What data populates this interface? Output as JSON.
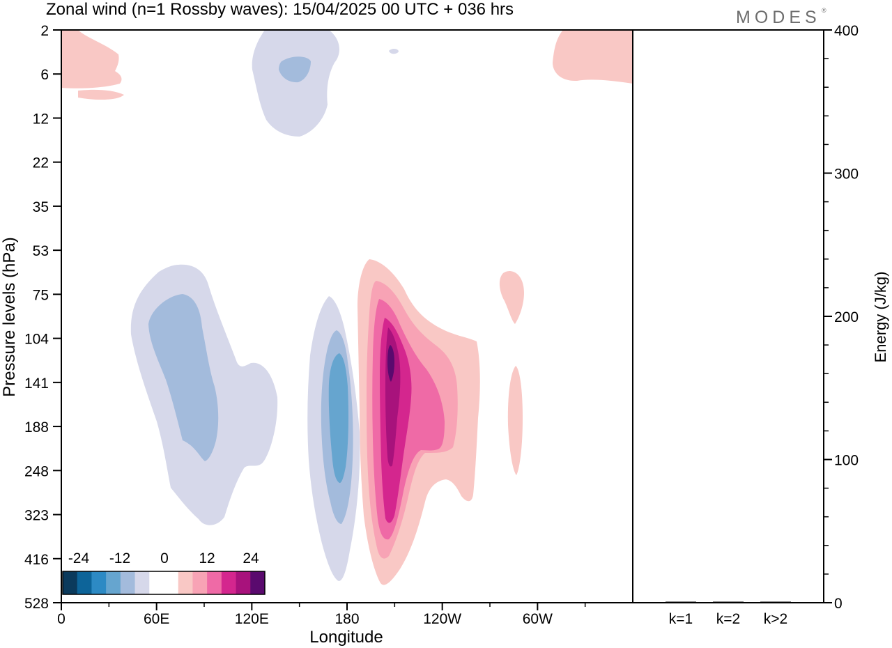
{
  "header": {
    "title": "Zonal wind (n=1 Rossby waves):  15/04/2025  00 UTC  + 036 hrs",
    "brand": "MODES",
    "brand_mark": "®"
  },
  "colors": {
    "neg5": "#0b3a5c",
    "neg4": "#0d6499",
    "neg3": "#2d8ac4",
    "neg2": "#66a5cf",
    "neg1": "#a3bbdc",
    "neg0": "#d6d8ea",
    "zero": "#ffffff",
    "pos0": "#f9c8c5",
    "pos1": "#f8a3b5",
    "pos2": "#ef6aa6",
    "pos3": "#d4268e",
    "pos4": "#a8127c",
    "pos5": "#5a0a6e"
  },
  "chart_data": [
    {
      "type": "heatmap",
      "subtype": "contour",
      "title": "Zonal wind (n=1 Rossby waves):  15/04/2025  00 UTC  + 036 hrs",
      "xlabel": "Longitude",
      "ylabel": "Pressure levels (hPa)",
      "x_ticks": [
        "0",
        "60E",
        "120E",
        "180",
        "120W",
        "60W"
      ],
      "x_tick_values": [
        0,
        60,
        120,
        180,
        240,
        300
      ],
      "xlim": [
        0,
        360
      ],
      "y_ticks": [
        "2",
        "6",
        "12",
        "22",
        "35",
        "53",
        "75",
        "104",
        "141",
        "188",
        "248",
        "323",
        "416",
        "528"
      ],
      "y_axis_order": "2 at top, 528 at bottom",
      "colorbar": {
        "labels": [
          "-24",
          "-12",
          "0",
          "12",
          "24"
        ],
        "levels": [
          -30,
          -25,
          -20,
          -15,
          -10,
          -5,
          0,
          5,
          10,
          15,
          20,
          25,
          30
        ],
        "position": "bottom-left"
      },
      "features": [
        {
          "sign": "negative",
          "min_level": -10,
          "lon_center": 145,
          "pressure_center": "6",
          "lon_range": [
            118,
            172
          ],
          "pressure_range": [
            "2",
            "15"
          ]
        },
        {
          "sign": "negative",
          "min_level": -10,
          "lon_center": 85,
          "pressure_center": "141",
          "lon_range": [
            43,
            136
          ],
          "pressure_range": [
            "53",
            "323"
          ]
        },
        {
          "sign": "negative",
          "min_level": -20,
          "lon_center": 174,
          "pressure_center": "188",
          "lon_range": [
            157,
            188
          ],
          "pressure_range": [
            "75",
            "416"
          ]
        },
        {
          "sign": "positive",
          "max_level": 25,
          "lon_center": 207,
          "pressure_center": "120",
          "lon_range": [
            188,
            264
          ],
          "pressure_range": [
            "53",
            "416"
          ]
        },
        {
          "sign": "positive",
          "max_level": 5,
          "lon_center": 285,
          "pressure_center": "90",
          "lon_range": [
            277,
            292
          ],
          "pressure_range": [
            "60",
            "110"
          ]
        },
        {
          "sign": "positive",
          "max_level": 5,
          "lon_center": 285,
          "pressure_center": "188",
          "lon_range": [
            280,
            290
          ],
          "pressure_range": [
            "125",
            "260"
          ]
        },
        {
          "sign": "positive",
          "max_level": 5,
          "lon_center": 15,
          "pressure_center": "6",
          "lon_range": [
            0,
            38
          ],
          "pressure_range": [
            "2",
            "9"
          ]
        },
        {
          "sign": "positive",
          "max_level": 5,
          "lon_center": 345,
          "pressure_center": "5",
          "lon_range": [
            310,
            360
          ],
          "pressure_range": [
            "2",
            "7"
          ]
        }
      ]
    },
    {
      "type": "bar",
      "ylabel": "Energy (J/kg)",
      "categories": [
        "k=1",
        "k=2",
        "k>2"
      ],
      "values": [
        0.5,
        0.2,
        0.4
      ],
      "ylim": [
        0,
        400
      ],
      "y_ticks": [
        "0",
        "100",
        "200",
        "300",
        "400"
      ]
    }
  ]
}
